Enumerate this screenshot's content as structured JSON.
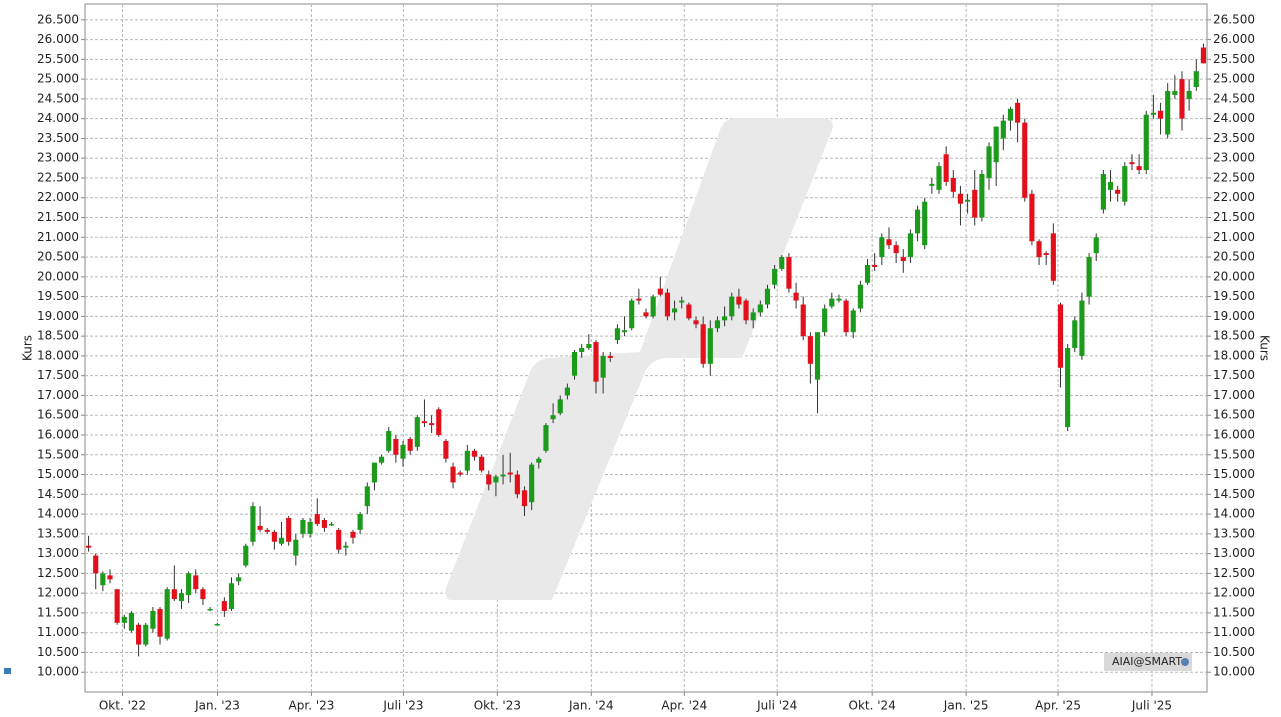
{
  "chart_data": {
    "type": "candlestick",
    "label": "AIAI@SMART",
    "ylabel": "Kurs",
    "up_color": "#1b9a1b",
    "down_color": "#e3101c",
    "grid": true,
    "xlim": [
      -0.5,
      156.5
    ],
    "xticks": [
      {
        "value": 4.75,
        "label": "Okt. '22"
      },
      {
        "value": 18.04,
        "label": "Jan. '23"
      },
      {
        "value": 31.19,
        "label": "Apr. '23"
      },
      {
        "value": 44.06,
        "label": "Juli '23"
      },
      {
        "value": 57.2,
        "label": "Okt. '23"
      },
      {
        "value": 70.35,
        "label": "Jan. '24"
      },
      {
        "value": 83.36,
        "label": "Apr. '24"
      },
      {
        "value": 96.36,
        "label": "Juli '24"
      },
      {
        "value": 109.65,
        "label": "Okt. '24"
      },
      {
        "value": 122.8,
        "label": "Jan. '25"
      },
      {
        "value": 135.66,
        "label": "Apr. '25"
      },
      {
        "value": 148.8,
        "label": "Juli '25"
      }
    ],
    "ylim": [
      9500,
      26900
    ],
    "yticks": [
      {
        "value": 10000,
        "label": "10.000"
      },
      {
        "value": 10500,
        "label": "10.500"
      },
      {
        "value": 11000,
        "label": "11.000"
      },
      {
        "value": 11500,
        "label": "11.500"
      },
      {
        "value": 12000,
        "label": "12.000"
      },
      {
        "value": 12500,
        "label": "12.500"
      },
      {
        "value": 13000,
        "label": "13.000"
      },
      {
        "value": 13500,
        "label": "13.500"
      },
      {
        "value": 14000,
        "label": "14.000"
      },
      {
        "value": 14500,
        "label": "14.500"
      },
      {
        "value": 15000,
        "label": "15.000"
      },
      {
        "value": 15500,
        "label": "15.500"
      },
      {
        "value": 16000,
        "label": "16.000"
      },
      {
        "value": 16500,
        "label": "16.500"
      },
      {
        "value": 17000,
        "label": "17.000"
      },
      {
        "value": 17500,
        "label": "17.500"
      },
      {
        "value": 18000,
        "label": "18.000"
      },
      {
        "value": 18500,
        "label": "18.500"
      },
      {
        "value": 19000,
        "label": "19.000"
      },
      {
        "value": 19500,
        "label": "19.500"
      },
      {
        "value": 20000,
        "label": "20.000"
      },
      {
        "value": 20500,
        "label": "20.500"
      },
      {
        "value": 21000,
        "label": "21.000"
      },
      {
        "value": 21500,
        "label": "21.500"
      },
      {
        "value": 22000,
        "label": "22.000"
      },
      {
        "value": 22500,
        "label": "22.500"
      },
      {
        "value": 23000,
        "label": "23.000"
      },
      {
        "value": 23500,
        "label": "23.500"
      },
      {
        "value": 24000,
        "label": "24.000"
      },
      {
        "value": 24500,
        "label": "24.500"
      },
      {
        "value": 25000,
        "label": "25.000"
      },
      {
        "value": 25500,
        "label": "25.500"
      },
      {
        "value": 26000,
        "label": "26.000"
      },
      {
        "value": 26500,
        "label": "26.500"
      }
    ],
    "ohlc": [
      [
        13200,
        13450,
        13050,
        13150
      ],
      [
        12950,
        13000,
        12100,
        12500
      ],
      [
        12200,
        12550,
        12050,
        12500
      ],
      [
        12450,
        12600,
        12250,
        12350
      ],
      [
        12100,
        12100,
        11200,
        11250
      ],
      [
        11250,
        11450,
        11100,
        11400
      ],
      [
        11050,
        11550,
        11000,
        11500
      ],
      [
        11200,
        11250,
        10400,
        10700
      ],
      [
        10700,
        11250,
        10650,
        11200
      ],
      [
        11100,
        11650,
        11000,
        11550
      ],
      [
        11600,
        11650,
        10700,
        10900
      ],
      [
        10850,
        12150,
        10800,
        12100
      ],
      [
        12100,
        12700,
        11800,
        11850
      ],
      [
        11800,
        12100,
        11600,
        12000
      ],
      [
        11950,
        12550,
        11750,
        12500
      ],
      [
        12450,
        12600,
        12000,
        12100
      ],
      [
        12100,
        12150,
        11700,
        11850
      ],
      [
        11600,
        11650,
        11550,
        11600
      ],
      [
        11200,
        11250,
        11200,
        11220
      ],
      [
        11800,
        11900,
        11400,
        11550
      ],
      [
        11600,
        12400,
        11550,
        12250
      ],
      [
        12300,
        12500,
        12200,
        12400
      ],
      [
        12700,
        13250,
        12650,
        13200
      ],
      [
        13300,
        14300,
        13200,
        14200
      ],
      [
        13700,
        14200,
        13550,
        13600
      ],
      [
        13600,
        13650,
        13500,
        13550
      ],
      [
        13550,
        13600,
        13100,
        13300
      ],
      [
        13250,
        13800,
        13200,
        13400
      ],
      [
        13900,
        13950,
        13200,
        13300
      ],
      [
        12950,
        13500,
        12700,
        13350
      ],
      [
        13500,
        13900,
        13400,
        13850
      ],
      [
        13500,
        13900,
        13400,
        13800
      ],
      [
        14000,
        14400,
        13700,
        13750
      ],
      [
        13850,
        13900,
        13550,
        13650
      ],
      [
        13750,
        13800,
        13700,
        13750
      ],
      [
        13600,
        13650,
        13000,
        13100
      ],
      [
        13150,
        13300,
        12950,
        13200
      ],
      [
        13550,
        13600,
        13250,
        13400
      ],
      [
        13600,
        14050,
        13500,
        14000
      ],
      [
        14200,
        14800,
        14000,
        14700
      ],
      [
        14800,
        15300,
        14600,
        15300
      ],
      [
        15300,
        15500,
        15250,
        15450
      ],
      [
        15600,
        16200,
        15550,
        16100
      ],
      [
        15900,
        16000,
        15300,
        15500
      ],
      [
        15400,
        15850,
        15200,
        15750
      ],
      [
        15900,
        15950,
        15500,
        15600
      ],
      [
        15700,
        16500,
        15600,
        16450
      ],
      [
        16350,
        16900,
        16200,
        16300
      ],
      [
        16300,
        16500,
        16050,
        16250
      ],
      [
        16650,
        16700,
        15950,
        16000
      ],
      [
        15850,
        15900,
        15300,
        15400
      ],
      [
        15200,
        15300,
        14650,
        14800
      ],
      [
        15050,
        15100,
        14950,
        15000
      ],
      [
        15100,
        15750,
        15000,
        15600
      ],
      [
        15600,
        15650,
        15350,
        15450
      ],
      [
        15450,
        15500,
        15050,
        15100
      ],
      [
        15000,
        15100,
        14600,
        14750
      ],
      [
        14800,
        15000,
        14450,
        14950
      ],
      [
        14950,
        15500,
        14750,
        15000
      ],
      [
        15050,
        15550,
        14800,
        15000
      ],
      [
        15000,
        15100,
        14400,
        14500
      ],
      [
        14600,
        14700,
        13950,
        14200
      ],
      [
        14300,
        15300,
        14100,
        15250
      ],
      [
        15300,
        15450,
        15150,
        15400
      ],
      [
        15600,
        16300,
        15550,
        16250
      ],
      [
        16400,
        16800,
        16300,
        16500
      ],
      [
        16550,
        17000,
        16500,
        16900
      ],
      [
        17000,
        17300,
        16900,
        17200
      ],
      [
        17500,
        18150,
        17400,
        18100
      ],
      [
        18100,
        18300,
        17950,
        18200
      ],
      [
        18200,
        18550,
        18150,
        18300
      ],
      [
        18350,
        18400,
        17050,
        17350
      ],
      [
        17450,
        18100,
        17050,
        18000
      ],
      [
        18000,
        18100,
        17850,
        17950
      ],
      [
        18400,
        18800,
        18300,
        18700
      ],
      [
        18600,
        19000,
        18500,
        18650
      ],
      [
        18700,
        19450,
        18650,
        19400
      ],
      [
        19450,
        19700,
        19300,
        19400
      ],
      [
        19100,
        19200,
        18950,
        19000
      ],
      [
        19000,
        19550,
        18950,
        19500
      ],
      [
        19700,
        20000,
        19500,
        19550
      ],
      [
        19600,
        19700,
        18900,
        19000
      ],
      [
        19100,
        19400,
        18900,
        19200
      ],
      [
        19350,
        19500,
        19200,
        19400
      ],
      [
        19300,
        19350,
        18900,
        18950
      ],
      [
        18900,
        19000,
        18700,
        18800
      ],
      [
        18800,
        19000,
        17700,
        17800
      ],
      [
        17800,
        18900,
        17500,
        18700
      ],
      [
        18700,
        19000,
        18600,
        18900
      ],
      [
        18900,
        19250,
        18750,
        19000
      ],
      [
        19000,
        19600,
        18900,
        19500
      ],
      [
        19500,
        19700,
        19200,
        19300
      ],
      [
        19400,
        19450,
        18800,
        18900
      ],
      [
        18900,
        19200,
        18700,
        19100
      ],
      [
        19100,
        19400,
        19000,
        19300
      ],
      [
        19300,
        19800,
        19200,
        19700
      ],
      [
        19800,
        20300,
        19700,
        20200
      ],
      [
        20200,
        20550,
        20150,
        20500
      ],
      [
        20500,
        20600,
        19600,
        19700
      ],
      [
        19600,
        19850,
        19200,
        19400
      ],
      [
        19300,
        19500,
        18400,
        18500
      ],
      [
        18500,
        18600,
        17300,
        17800
      ],
      [
        17400,
        18600,
        16550,
        18600
      ],
      [
        18600,
        19300,
        18500,
        19200
      ],
      [
        19250,
        19600,
        19200,
        19450
      ],
      [
        19400,
        19550,
        19350,
        19450
      ],
      [
        19400,
        19450,
        18500,
        18600
      ],
      [
        18600,
        19200,
        18450,
        19150
      ],
      [
        19200,
        19900,
        19100,
        19800
      ],
      [
        19850,
        20450,
        19800,
        20300
      ],
      [
        20300,
        20600,
        20150,
        20250
      ],
      [
        20500,
        21100,
        20300,
        21000
      ],
      [
        20950,
        21250,
        20700,
        20800
      ],
      [
        20800,
        20900,
        20350,
        20600
      ],
      [
        20500,
        20700,
        20100,
        20400
      ],
      [
        20500,
        21200,
        20350,
        21100
      ],
      [
        21100,
        21800,
        20900,
        21700
      ],
      [
        20800,
        22000,
        20700,
        21900
      ],
      [
        22300,
        22500,
        22100,
        22350
      ],
      [
        22200,
        22900,
        22100,
        22800
      ],
      [
        23100,
        23300,
        22300,
        22400
      ],
      [
        22500,
        22700,
        22000,
        22150
      ],
      [
        22100,
        22300,
        21300,
        21850
      ],
      [
        21900,
        22100,
        21600,
        21950
      ],
      [
        22200,
        22700,
        21300,
        21500
      ],
      [
        21500,
        22700,
        21400,
        22600
      ],
      [
        22500,
        23400,
        22200,
        23300
      ],
      [
        22900,
        23800,
        22300,
        23800
      ],
      [
        23500,
        24100,
        23200,
        23950
      ],
      [
        23950,
        24300,
        23700,
        24250
      ],
      [
        24400,
        24500,
        23400,
        23900
      ],
      [
        23900,
        24000,
        21900,
        22000
      ],
      [
        22100,
        22200,
        20800,
        20900
      ],
      [
        20900,
        20950,
        20300,
        20500
      ],
      [
        20600,
        20650,
        20300,
        20550
      ],
      [
        21100,
        21350,
        19800,
        19900
      ],
      [
        19300,
        19350,
        17200,
        17700
      ],
      [
        16200,
        18300,
        16100,
        18200
      ],
      [
        18200,
        19000,
        18100,
        18900
      ],
      [
        18000,
        19600,
        17900,
        19400
      ],
      [
        19500,
        20600,
        19300,
        20500
      ],
      [
        20600,
        21100,
        20400,
        21000
      ],
      [
        21700,
        22700,
        21600,
        22600
      ],
      [
        22200,
        22700,
        21900,
        22400
      ],
      [
        22200,
        22300,
        21900,
        22100
      ],
      [
        21900,
        22900,
        21800,
        22800
      ],
      [
        22900,
        23100,
        22700,
        22850
      ],
      [
        22800,
        23100,
        22600,
        22700
      ],
      [
        22700,
        24200,
        22600,
        24100
      ],
      [
        24100,
        24600,
        24000,
        24150
      ],
      [
        24200,
        24400,
        23600,
        24000
      ],
      [
        23600,
        24900,
        23500,
        24700
      ],
      [
        24600,
        25100,
        24500,
        24700
      ],
      [
        25000,
        25200,
        23700,
        24000
      ],
      [
        24500,
        25000,
        24200,
        24700
      ],
      [
        24800,
        25500,
        24700,
        25200
      ],
      [
        25800,
        25900,
        25400,
        25400
      ]
    ]
  }
}
